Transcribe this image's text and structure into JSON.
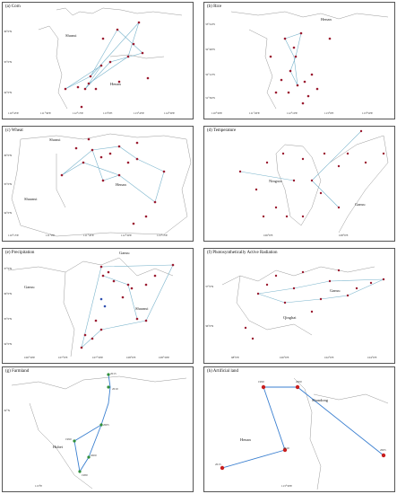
{
  "panels": [
    {
      "key": "a",
      "title": "(a) Corn",
      "labels": [
        {
          "text": "Shanxi"
        },
        {
          "text": "Henan"
        }
      ],
      "x_ticks": [
        "110°45'E",
        "111°30'E",
        "112°15'E",
        "113°0'E",
        "113°45'E",
        "114°30'E"
      ],
      "y_ticks": [
        "36°0'N",
        "35°0'N",
        "34°0'N"
      ]
    },
    {
      "key": "b",
      "title": "(b) Rice",
      "labels": [
        {
          "text": "Henan"
        }
      ],
      "x_ticks": [
        "110°30'E",
        "111°20'E",
        "112°10'E",
        "113°0'E",
        "113°50'E"
      ],
      "y_ticks": [
        "33°24'N",
        "32°48'N",
        "32°12'N",
        "31°36'N"
      ]
    },
    {
      "key": "c",
      "title": "(c) Wheat",
      "labels": [
        {
          "text": "Shanxi"
        },
        {
          "text": "Henan"
        },
        {
          "text": "Shaanxi"
        }
      ],
      "x_ticks": [
        "110°15'E",
        "111°0'E",
        "111°45'E",
        "112°30'E",
        "113°15'E"
      ],
      "y_ticks": [
        "36°0'N",
        "35°0'N",
        "34°0'N"
      ]
    },
    {
      "key": "d",
      "title": "(d) Temperature",
      "labels": [
        {
          "text": "Ningxia"
        },
        {
          "text": "Gansu"
        }
      ],
      "x_ticks": [
        "106°0'E",
        "108°0'E"
      ],
      "y_ticks": []
    },
    {
      "key": "e",
      "title": "(e) Precipitation",
      "labels": [
        {
          "text": "Gansu"
        },
        {
          "text": "Gansu"
        },
        {
          "text": "Shaanxi"
        }
      ],
      "x_ticks": [
        "106°30'E",
        "107°0'E",
        "107°30'E",
        "108°0'E",
        "108°30'E"
      ],
      "y_ticks": [
        "37°0'N",
        "36°0'N",
        "35°0'N",
        "34°0'N"
      ]
    },
    {
      "key": "f",
      "title": "(f) Photosynthetically Active Radiation",
      "labels": [
        {
          "text": "Gansu"
        },
        {
          "text": "Qinghai"
        }
      ],
      "x_ticks": [
        "98°0'E",
        "100°0'E",
        "102°0'E",
        "104°0'E"
      ],
      "y_ticks": [
        "37°0'N",
        "36°0'N"
      ]
    },
    {
      "key": "g",
      "title": "(g) Farmland",
      "labels": [
        {
          "text": "Hubei"
        }
      ],
      "x_ticks": [
        "113°E"
      ],
      "y_ticks": [
        "32°N"
      ],
      "route_points": [
        "1980",
        "1990",
        "2000",
        "2005",
        "2010",
        "2015"
      ]
    },
    {
      "key": "h",
      "title": "(h) Artificial land",
      "labels": [
        {
          "text": "Shandong"
        },
        {
          "text": "Henan"
        }
      ],
      "x_ticks": [
        "113°30'E"
      ],
      "y_ticks": [],
      "route_points": [
        "1990",
        "2000",
        "2005",
        "2010",
        "2015"
      ]
    }
  ],
  "colors": {
    "point": "#9b1b30",
    "route": "#7ab4cc",
    "trend": "#3a7fd0",
    "green_point": "#2f8f3a",
    "border": "#999999"
  }
}
